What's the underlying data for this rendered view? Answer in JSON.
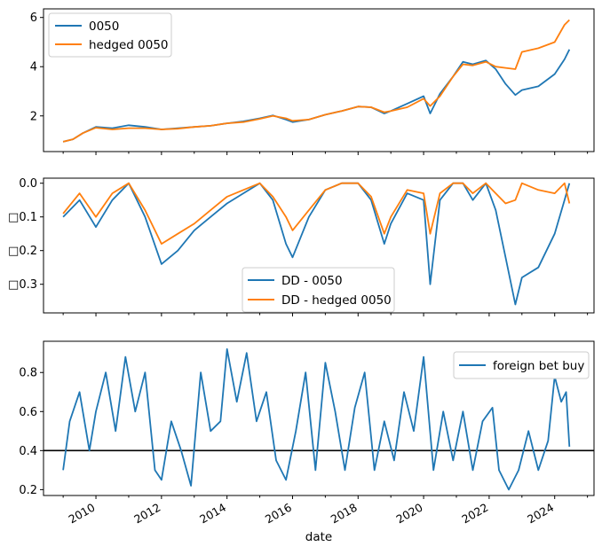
{
  "xlabel": "date",
  "x_tick_labels": [
    "2010",
    "2012",
    "2014",
    "2016",
    "2018",
    "2020",
    "2022",
    "2024"
  ],
  "colors": {
    "blue": "#1f77b4",
    "orange": "#ff7f0e",
    "ref_line": "#000000"
  },
  "chart_data": [
    {
      "type": "line",
      "title": "",
      "xlabel": "",
      "ylabel": "",
      "xlim": [
        2008.4,
        2025.2
      ],
      "ylim": [
        0.55,
        6.35
      ],
      "y_ticks": [
        2,
        4,
        6
      ],
      "grid": false,
      "legend": "top-left",
      "series": [
        {
          "name": "0050",
          "color": "#1f77b4",
          "points": [
            [
              2009.0,
              0.95
            ],
            [
              2009.3,
              1.05
            ],
            [
              2009.6,
              1.3
            ],
            [
              2010.0,
              1.55
            ],
            [
              2010.5,
              1.5
            ],
            [
              2011.0,
              1.62
            ],
            [
              2011.5,
              1.55
            ],
            [
              2012.0,
              1.45
            ],
            [
              2012.5,
              1.5
            ],
            [
              2013.0,
              1.55
            ],
            [
              2013.5,
              1.6
            ],
            [
              2014.0,
              1.7
            ],
            [
              2014.5,
              1.78
            ],
            [
              2015.0,
              1.9
            ],
            [
              2015.4,
              2.02
            ],
            [
              2015.8,
              1.85
            ],
            [
              2016.0,
              1.75
            ],
            [
              2016.5,
              1.85
            ],
            [
              2017.0,
              2.05
            ],
            [
              2017.5,
              2.2
            ],
            [
              2018.0,
              2.38
            ],
            [
              2018.4,
              2.35
            ],
            [
              2018.8,
              2.1
            ],
            [
              2019.0,
              2.2
            ],
            [
              2019.5,
              2.5
            ],
            [
              2020.0,
              2.8
            ],
            [
              2020.2,
              2.1
            ],
            [
              2020.5,
              2.9
            ],
            [
              2020.9,
              3.6
            ],
            [
              2021.2,
              4.2
            ],
            [
              2021.5,
              4.1
            ],
            [
              2021.9,
              4.25
            ],
            [
              2022.2,
              3.9
            ],
            [
              2022.5,
              3.3
            ],
            [
              2022.8,
              2.85
            ],
            [
              2023.0,
              3.05
            ],
            [
              2023.5,
              3.2
            ],
            [
              2024.0,
              3.7
            ],
            [
              2024.3,
              4.3
            ],
            [
              2024.45,
              4.7
            ]
          ]
        },
        {
          "name": "hedged 0050",
          "color": "#ff7f0e",
          "points": [
            [
              2009.0,
              0.95
            ],
            [
              2009.3,
              1.05
            ],
            [
              2009.6,
              1.3
            ],
            [
              2010.0,
              1.52
            ],
            [
              2010.5,
              1.45
            ],
            [
              2011.0,
              1.5
            ],
            [
              2011.5,
              1.5
            ],
            [
              2012.0,
              1.45
            ],
            [
              2012.5,
              1.48
            ],
            [
              2013.0,
              1.55
            ],
            [
              2013.5,
              1.6
            ],
            [
              2014.0,
              1.7
            ],
            [
              2014.5,
              1.75
            ],
            [
              2015.0,
              1.88
            ],
            [
              2015.4,
              2.0
            ],
            [
              2015.8,
              1.9
            ],
            [
              2016.0,
              1.8
            ],
            [
              2016.5,
              1.85
            ],
            [
              2017.0,
              2.05
            ],
            [
              2017.5,
              2.2
            ],
            [
              2018.0,
              2.38
            ],
            [
              2018.4,
              2.35
            ],
            [
              2018.8,
              2.15
            ],
            [
              2019.0,
              2.2
            ],
            [
              2019.5,
              2.35
            ],
            [
              2020.0,
              2.7
            ],
            [
              2020.2,
              2.4
            ],
            [
              2020.5,
              2.8
            ],
            [
              2020.9,
              3.6
            ],
            [
              2021.2,
              4.1
            ],
            [
              2021.5,
              4.05
            ],
            [
              2021.9,
              4.2
            ],
            [
              2022.2,
              4.0
            ],
            [
              2022.5,
              3.95
            ],
            [
              2022.8,
              3.9
            ],
            [
              2023.0,
              4.6
            ],
            [
              2023.5,
              4.75
            ],
            [
              2024.0,
              5.0
            ],
            [
              2024.3,
              5.7
            ],
            [
              2024.45,
              5.9
            ]
          ]
        }
      ]
    },
    {
      "type": "line",
      "title": "",
      "xlabel": "",
      "ylabel": "",
      "xlim": [
        2008.4,
        2025.2
      ],
      "ylim": [
        -0.385,
        0.015
      ],
      "y_ticks": [
        0.0,
        -0.1,
        -0.2,
        -0.3
      ],
      "y_tick_labels": [
        "0.0",
        "□0.1",
        "□0.2",
        "□0.3"
      ],
      "grid": false,
      "legend": "lower-center",
      "series": [
        {
          "name": "DD - 0050",
          "color": "#1f77b4",
          "points": [
            [
              2009.0,
              -0.1
            ],
            [
              2009.5,
              -0.05
            ],
            [
              2010.0,
              -0.13
            ],
            [
              2010.5,
              -0.05
            ],
            [
              2011.0,
              0.0
            ],
            [
              2011.5,
              -0.1
            ],
            [
              2012.0,
              -0.24
            ],
            [
              2012.5,
              -0.2
            ],
            [
              2013.0,
              -0.14
            ],
            [
              2013.5,
              -0.1
            ],
            [
              2014.0,
              -0.06
            ],
            [
              2014.5,
              -0.03
            ],
            [
              2015.0,
              0.0
            ],
            [
              2015.4,
              -0.05
            ],
            [
              2015.8,
              -0.18
            ],
            [
              2016.0,
              -0.22
            ],
            [
              2016.5,
              -0.1
            ],
            [
              2017.0,
              -0.02
            ],
            [
              2017.5,
              0.0
            ],
            [
              2018.0,
              0.0
            ],
            [
              2018.4,
              -0.05
            ],
            [
              2018.8,
              -0.18
            ],
            [
              2019.0,
              -0.12
            ],
            [
              2019.5,
              -0.03
            ],
            [
              2020.0,
              -0.05
            ],
            [
              2020.2,
              -0.3
            ],
            [
              2020.5,
              -0.05
            ],
            [
              2020.9,
              0.0
            ],
            [
              2021.2,
              0.0
            ],
            [
              2021.5,
              -0.05
            ],
            [
              2021.9,
              0.0
            ],
            [
              2022.2,
              -0.08
            ],
            [
              2022.5,
              -0.22
            ],
            [
              2022.8,
              -0.36
            ],
            [
              2023.0,
              -0.28
            ],
            [
              2023.5,
              -0.25
            ],
            [
              2024.0,
              -0.15
            ],
            [
              2024.3,
              -0.05
            ],
            [
              2024.45,
              0.0
            ]
          ]
        },
        {
          "name": "DD - hedged 0050",
          "color": "#ff7f0e",
          "points": [
            [
              2009.0,
              -0.09
            ],
            [
              2009.5,
              -0.03
            ],
            [
              2010.0,
              -0.1
            ],
            [
              2010.5,
              -0.03
            ],
            [
              2011.0,
              0.0
            ],
            [
              2011.5,
              -0.08
            ],
            [
              2012.0,
              -0.18
            ],
            [
              2012.5,
              -0.15
            ],
            [
              2013.0,
              -0.12
            ],
            [
              2013.5,
              -0.08
            ],
            [
              2014.0,
              -0.04
            ],
            [
              2014.5,
              -0.02
            ],
            [
              2015.0,
              0.0
            ],
            [
              2015.4,
              -0.04
            ],
            [
              2015.8,
              -0.1
            ],
            [
              2016.0,
              -0.14
            ],
            [
              2016.5,
              -0.08
            ],
            [
              2017.0,
              -0.02
            ],
            [
              2017.5,
              0.0
            ],
            [
              2018.0,
              0.0
            ],
            [
              2018.4,
              -0.04
            ],
            [
              2018.8,
              -0.15
            ],
            [
              2019.0,
              -0.1
            ],
            [
              2019.5,
              -0.02
            ],
            [
              2020.0,
              -0.03
            ],
            [
              2020.2,
              -0.15
            ],
            [
              2020.5,
              -0.03
            ],
            [
              2020.9,
              0.0
            ],
            [
              2021.2,
              0.0
            ],
            [
              2021.5,
              -0.03
            ],
            [
              2021.9,
              0.0
            ],
            [
              2022.2,
              -0.03
            ],
            [
              2022.5,
              -0.06
            ],
            [
              2022.8,
              -0.05
            ],
            [
              2023.0,
              0.0
            ],
            [
              2023.5,
              -0.02
            ],
            [
              2024.0,
              -0.03
            ],
            [
              2024.3,
              0.0
            ],
            [
              2024.45,
              -0.06
            ]
          ]
        }
      ]
    },
    {
      "type": "line",
      "title": "",
      "xlabel": "date",
      "ylabel": "",
      "xlim": [
        2008.4,
        2025.2
      ],
      "ylim": [
        0.17,
        0.96
      ],
      "y_ticks": [
        0.2,
        0.4,
        0.6,
        0.8
      ],
      "grid": false,
      "legend": "top-right",
      "reference_line": 0.4,
      "series": [
        {
          "name": "foreign bet buy",
          "color": "#1f77b4",
          "points": [
            [
              2009.0,
              0.3
            ],
            [
              2009.2,
              0.55
            ],
            [
              2009.5,
              0.7
            ],
            [
              2009.8,
              0.4
            ],
            [
              2010.0,
              0.6
            ],
            [
              2010.3,
              0.8
            ],
            [
              2010.6,
              0.5
            ],
            [
              2010.9,
              0.88
            ],
            [
              2011.2,
              0.6
            ],
            [
              2011.5,
              0.8
            ],
            [
              2011.8,
              0.3
            ],
            [
              2012.0,
              0.25
            ],
            [
              2012.3,
              0.55
            ],
            [
              2012.6,
              0.4
            ],
            [
              2012.9,
              0.22
            ],
            [
              2013.2,
              0.8
            ],
            [
              2013.5,
              0.5
            ],
            [
              2013.8,
              0.55
            ],
            [
              2014.0,
              0.92
            ],
            [
              2014.3,
              0.65
            ],
            [
              2014.6,
              0.9
            ],
            [
              2014.9,
              0.55
            ],
            [
              2015.2,
              0.7
            ],
            [
              2015.5,
              0.35
            ],
            [
              2015.8,
              0.25
            ],
            [
              2016.1,
              0.5
            ],
            [
              2016.4,
              0.8
            ],
            [
              2016.7,
              0.3
            ],
            [
              2017.0,
              0.85
            ],
            [
              2017.3,
              0.6
            ],
            [
              2017.6,
              0.3
            ],
            [
              2017.9,
              0.62
            ],
            [
              2018.2,
              0.8
            ],
            [
              2018.5,
              0.3
            ],
            [
              2018.8,
              0.55
            ],
            [
              2019.1,
              0.35
            ],
            [
              2019.4,
              0.7
            ],
            [
              2019.7,
              0.5
            ],
            [
              2020.0,
              0.88
            ],
            [
              2020.3,
              0.3
            ],
            [
              2020.6,
              0.6
            ],
            [
              2020.9,
              0.35
            ],
            [
              2021.2,
              0.6
            ],
            [
              2021.5,
              0.3
            ],
            [
              2021.8,
              0.55
            ],
            [
              2022.1,
              0.62
            ],
            [
              2022.3,
              0.3
            ],
            [
              2022.6,
              0.2
            ],
            [
              2022.9,
              0.3
            ],
            [
              2023.2,
              0.5
            ],
            [
              2023.5,
              0.3
            ],
            [
              2023.8,
              0.45
            ],
            [
              2024.0,
              0.78
            ],
            [
              2024.2,
              0.65
            ],
            [
              2024.35,
              0.7
            ],
            [
              2024.45,
              0.42
            ]
          ]
        }
      ]
    }
  ]
}
